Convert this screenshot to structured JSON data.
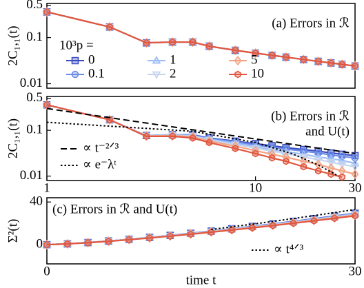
{
  "chart_data": [
    {
      "type": "line",
      "title": [
        "(a) Errors in ℛ"
      ],
      "title_pos": "upper right",
      "ylabel": "2C₁,₁(t)",
      "xscale": "log",
      "yscale": "log",
      "xlim": [
        1,
        30
      ],
      "ylim": [
        0.008,
        0.55
      ],
      "yticks": [
        0.01,
        0.1,
        0.5
      ],
      "legend": "center left",
      "legend_title": "10³p =",
      "x": [
        1,
        2,
        3,
        4,
        5,
        6,
        8,
        10,
        12,
        14,
        17,
        20,
        23,
        26,
        30
      ],
      "series": [
        {
          "name": "0",
          "color": "#3b4cc0",
          "marker": "square",
          "values": [
            0.36,
            0.17,
            0.077,
            0.08,
            0.08,
            0.065,
            0.053,
            0.046,
            0.0412,
            0.0377,
            0.0336,
            0.0305,
            0.0282,
            0.0263,
            0.0242
          ]
        },
        {
          "name": "0.1",
          "color": "#6a8de8",
          "marker": "circle",
          "values": [
            0.36,
            0.17,
            0.077,
            0.08,
            0.08,
            0.065,
            0.053,
            0.046,
            0.0412,
            0.0377,
            0.0336,
            0.0305,
            0.0282,
            0.0263,
            0.0242
          ]
        },
        {
          "name": "1",
          "color": "#9bbcf7",
          "marker": "triangle-up",
          "values": [
            0.36,
            0.17,
            0.077,
            0.08,
            0.08,
            0.065,
            0.053,
            0.046,
            0.0412,
            0.0377,
            0.0336,
            0.0305,
            0.0282,
            0.0263,
            0.0242
          ]
        },
        {
          "name": "2",
          "color": "#c5d5ee",
          "marker": "triangle-down",
          "values": [
            0.36,
            0.17,
            0.077,
            0.08,
            0.08,
            0.065,
            0.053,
            0.046,
            0.0412,
            0.0377,
            0.0336,
            0.0305,
            0.0282,
            0.0263,
            0.0242
          ]
        },
        {
          "name": "5",
          "color": "#f3a383",
          "marker": "diamond",
          "values": [
            0.36,
            0.17,
            0.077,
            0.08,
            0.08,
            0.065,
            0.053,
            0.046,
            0.0412,
            0.0377,
            0.0336,
            0.0305,
            0.0282,
            0.0263,
            0.0242
          ]
        },
        {
          "name": "10",
          "color": "#e0573f",
          "marker": "hexagon",
          "values": [
            0.36,
            0.17,
            0.077,
            0.08,
            0.08,
            0.065,
            0.053,
            0.046,
            0.0412,
            0.0377,
            0.0336,
            0.0305,
            0.0282,
            0.0263,
            0.0242
          ]
        }
      ]
    },
    {
      "type": "line",
      "title": [
        "(b) Errors in ℛ",
        "and U(t)"
      ],
      "title_pos": "upper right",
      "ylabel": "2C₁,₁(t)",
      "xscale": "log",
      "yscale": "log",
      "xlim": [
        1,
        30
      ],
      "ylim": [
        0.008,
        0.55
      ],
      "xticks": [
        1,
        10,
        30
      ],
      "yticks": [
        0.01,
        0.1,
        0.5
      ],
      "legend": "lower left",
      "x": [
        1,
        2,
        3,
        4,
        5,
        6,
        8,
        10,
        12,
        14,
        17,
        20,
        23,
        26,
        30
      ],
      "series": [
        {
          "color": "#3b4cc0",
          "marker": "square",
          "values": [
            0.36,
            0.17,
            0.077,
            0.08,
            0.08,
            0.068,
            0.058,
            0.051,
            0.046,
            0.042,
            0.038,
            0.035,
            0.032,
            0.03,
            0.028
          ]
        },
        {
          "color": "#6a8de8",
          "marker": "circle",
          "values": [
            0.36,
            0.17,
            0.077,
            0.08,
            0.079,
            0.066,
            0.056,
            0.048,
            0.043,
            0.039,
            0.035,
            0.032,
            0.029,
            0.027,
            0.025
          ]
        },
        {
          "color": "#9bbcf7",
          "marker": "triangle-up",
          "values": [
            0.36,
            0.17,
            0.077,
            0.079,
            0.077,
            0.064,
            0.052,
            0.044,
            0.038,
            0.034,
            0.03,
            0.026,
            0.024,
            0.022,
            0.019
          ]
        },
        {
          "color": "#c5d5ee",
          "marker": "triangle-down",
          "values": [
            0.36,
            0.17,
            0.076,
            0.078,
            0.075,
            0.062,
            0.049,
            0.041,
            0.035,
            0.031,
            0.026,
            0.023,
            0.02,
            0.018,
            0.016
          ]
        },
        {
          "color": "#f3a383",
          "marker": "diamond",
          "values": [
            0.36,
            0.17,
            0.075,
            0.076,
            0.072,
            0.058,
            0.045,
            0.036,
            0.03,
            0.026,
            0.021,
            0.018,
            0.015,
            0.013,
            0.011
          ]
        },
        {
          "color": "#e0573f",
          "marker": "hexagon",
          "values": [
            0.36,
            0.17,
            0.074,
            0.074,
            0.068,
            0.054,
            0.04,
            0.031,
            0.025,
            0.021,
            0.016,
            0.013,
            0.011,
            0.0095,
            null
          ]
        },
        {
          "name": "∝ t⁻²ᐟ³",
          "color": "#000000",
          "style": "dashed",
          "x": [
            1,
            30
          ],
          "values": [
            0.3,
            0.0311
          ]
        },
        {
          "name": "∝ e⁻λᵗ",
          "color": "#000000",
          "style": "dotted",
          "x": [
            1,
            5,
            10,
            15,
            20,
            25
          ],
          "values": [
            0.15,
            0.0954,
            0.0543,
            0.0308,
            0.0175,
            0.00996
          ]
        }
      ]
    },
    {
      "type": "line",
      "title": [
        "(c) Errors in ℛ and U(t)"
      ],
      "title_pos": "upper left",
      "ylabel": "Σ²(t)",
      "xlabel": "time t",
      "xlim": [
        0,
        30
      ],
      "ylim": [
        -18,
        44
      ],
      "xticks": [
        0,
        30
      ],
      "yticks": [
        0,
        40
      ],
      "legend": "lower right",
      "x": [
        0,
        2,
        4,
        6,
        8,
        10,
        12,
        14,
        16,
        18,
        20,
        22,
        24,
        26,
        28,
        30
      ],
      "series": [
        {
          "color": "#3b4cc0",
          "marker": "square",
          "values": [
            0,
            0.8,
            2.01,
            3.44,
            5.06,
            6.81,
            8.68,
            10.66,
            12.74,
            14.91,
            17.16,
            19.48,
            21.86,
            24.32,
            26.86,
            29.45
          ]
        },
        {
          "color": "#6a8de8",
          "marker": "circle",
          "values": [
            0,
            0.79,
            1.99,
            3.41,
            5.01,
            6.74,
            8.6,
            10.56,
            12.62,
            14.77,
            16.99,
            19.29,
            21.65,
            24.09,
            26.61,
            29.17
          ]
        },
        {
          "color": "#9bbcf7",
          "marker": "triangle-up",
          "values": [
            0,
            0.78,
            1.96,
            3.36,
            4.93,
            6.63,
            8.46,
            10.39,
            12.42,
            14.53,
            16.72,
            18.98,
            21.3,
            23.7,
            26.18,
            28.71
          ]
        },
        {
          "color": "#c5d5ee",
          "marker": "triangle-down",
          "values": [
            0,
            0.76,
            1.92,
            3.3,
            4.85,
            6.53,
            8.32,
            10.22,
            12.22,
            14.3,
            16.45,
            18.67,
            20.96,
            23.32,
            25.76,
            28.24
          ]
        },
        {
          "color": "#f3a383",
          "marker": "diamond",
          "values": [
            0,
            0.75,
            1.89,
            3.24,
            4.75,
            6.4,
            8.16,
            10.02,
            11.98,
            14.01,
            16.12,
            18.3,
            20.54,
            22.86,
            25.25,
            27.68
          ]
        },
        {
          "color": "#e0573f",
          "marker": "hexagon",
          "values": [
            0,
            0.73,
            1.84,
            3.16,
            4.64,
            6.25,
            7.97,
            9.78,
            11.69,
            13.68,
            15.74,
            17.87,
            20.06,
            22.32,
            24.65,
            27.03
          ]
        },
        {
          "name": "∝ t⁴ᐟ³",
          "color": "#000000",
          "style": "dotted",
          "x": [
            16,
            18,
            20,
            22,
            24,
            26,
            28,
            30
          ],
          "values": [
            14.27,
            16.7,
            19.22,
            21.82,
            24.49,
            27.24,
            30.09,
            32.99
          ]
        }
      ]
    }
  ]
}
